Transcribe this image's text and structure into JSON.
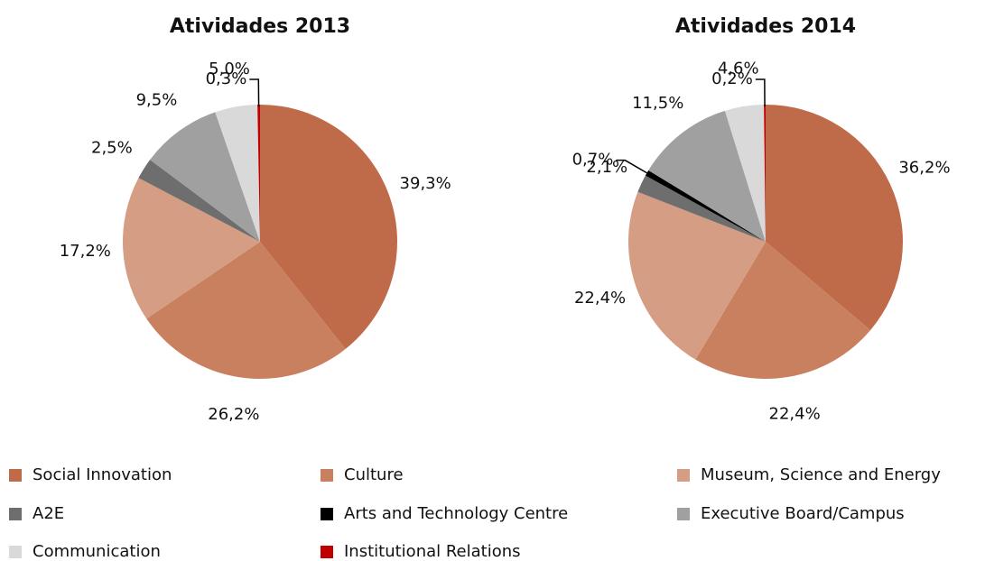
{
  "chart_data": [
    {
      "type": "pie",
      "title": "Atividades 2013",
      "categories": [
        "Social Innovation",
        "Culture",
        "Museum, Science and Energy",
        "A2E",
        "Arts and Technology Centre",
        "Executive Board/Campus",
        "Communication",
        "Institutional Relations"
      ],
      "values": [
        39.3,
        26.2,
        17.2,
        2.5,
        null,
        9.5,
        5.0,
        0.3
      ],
      "value_labels": [
        "39,3%",
        "26,2%",
        "17,2%",
        "2,5%",
        null,
        "9,5%",
        "5,0%",
        "0,3%"
      ],
      "colors": [
        "#bf6b4a",
        "#c9805f",
        "#d59d83",
        "#6e6e6e",
        "#000000",
        "#a0a0a0",
        "#d9d9d9",
        "#c00000"
      ]
    },
    {
      "type": "pie",
      "title": "Atividades 2014",
      "categories": [
        "Social Innovation",
        "Culture",
        "Museum, Science and Energy",
        "A2E",
        "Arts and Technology Centre",
        "Executive Board/Campus",
        "Communication",
        "Institutional Relations"
      ],
      "values": [
        36.2,
        22.4,
        22.4,
        2.1,
        0.7,
        11.5,
        4.6,
        0.2
      ],
      "value_labels": [
        "36,2%",
        "22,4%",
        "22,4%",
        "2,1%",
        "0,7%",
        "11,5%",
        "4,6%",
        "0,2%"
      ],
      "colors": [
        "#bf6b4a",
        "#c9805f",
        "#d59d83",
        "#6e6e6e",
        "#000000",
        "#a0a0a0",
        "#d9d9d9",
        "#c00000"
      ]
    }
  ]
}
